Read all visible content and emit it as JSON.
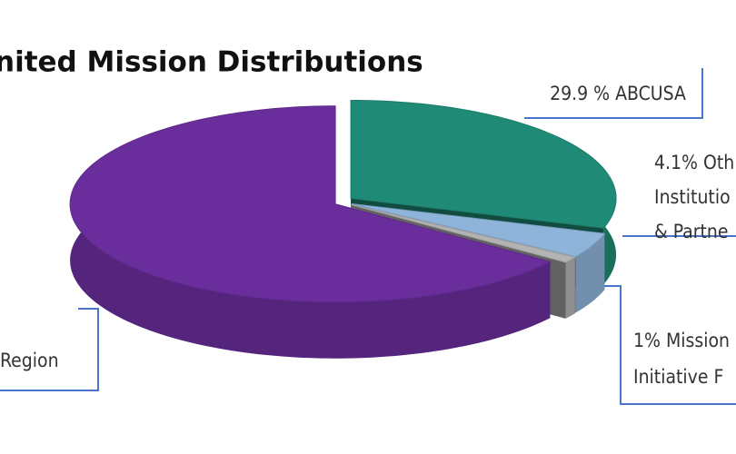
{
  "chart_data": {
    "type": "pie",
    "title": "nited Mission Distributions",
    "categories": [
      [
        "29.9 % ABCUSA"
      ],
      [
        "4.1% Oth",
        "Institutio",
        "& Partne"
      ],
      [
        "1% Mission",
        "Initiative F"
      ],
      [
        "Region"
      ]
    ],
    "values": [
      29.9,
      4.1,
      1,
      65
    ],
    "colors": [
      "#1f8a76",
      "#8fb4da",
      "#b3b3b3",
      "#6a2d9c"
    ]
  }
}
